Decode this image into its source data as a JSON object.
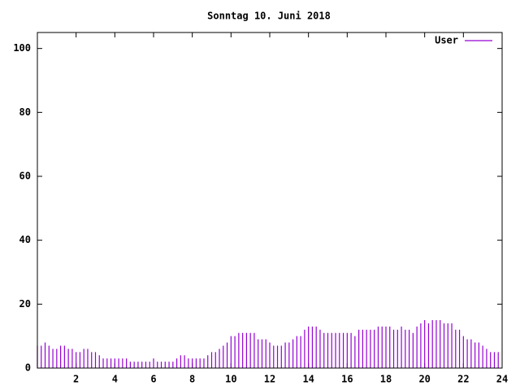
{
  "chart_data": {
    "type": "impulse",
    "title": "Sonntag 10. Juni 2018",
    "xlim": [
      0,
      24
    ],
    "xticks": [
      2,
      4,
      6,
      8,
      10,
      12,
      14,
      16,
      18,
      20,
      22,
      24
    ],
    "ylim": [
      0,
      105
    ],
    "yticks": [
      0,
      20,
      40,
      60,
      80,
      100
    ],
    "legend": "top-right",
    "x": [
      0,
      0.2,
      0.4,
      0.6,
      0.8,
      1,
      1.2,
      1.4,
      1.6,
      1.8,
      2,
      2.2,
      2.4,
      2.6,
      2.8,
      3,
      3.2,
      3.4,
      3.6,
      3.8,
      4,
      4.2,
      4.4,
      4.6,
      4.8,
      5,
      5.2,
      5.4,
      5.6,
      5.8,
      6,
      6.2,
      6.4,
      6.6,
      6.8,
      7,
      7.2,
      7.4,
      7.6,
      7.8,
      8,
      8.2,
      8.4,
      8.6,
      8.8,
      9,
      9.2,
      9.4,
      9.6,
      9.8,
      10,
      10.2,
      10.4,
      10.6,
      10.8,
      11,
      11.2,
      11.4,
      11.6,
      11.8,
      12,
      12.2,
      12.4,
      12.6,
      12.8,
      13,
      13.2,
      13.4,
      13.6,
      13.8,
      14,
      14.2,
      14.4,
      14.6,
      14.8,
      15,
      15.2,
      15.4,
      15.6,
      15.8,
      16,
      16.2,
      16.4,
      16.6,
      16.8,
      17,
      17.2,
      17.4,
      17.6,
      17.8,
      18,
      18.2,
      18.4,
      18.6,
      18.8,
      19,
      19.2,
      19.4,
      19.6,
      19.8,
      20,
      20.2,
      20.4,
      20.6,
      20.8,
      21,
      21.2,
      21.4,
      21.6,
      21.8,
      22,
      22.2,
      22.4,
      22.6,
      22.8,
      23,
      23.2,
      23.4,
      23.6,
      23.8
    ],
    "series": [
      {
        "name": "User",
        "color": "#9400d3",
        "values": [
          7,
          7,
          8,
          7,
          6,
          6,
          7,
          7,
          6,
          6,
          5,
          5,
          6,
          6,
          5,
          5,
          4,
          3,
          3,
          3,
          3,
          3,
          3,
          3,
          2,
          2,
          2,
          2,
          2,
          2,
          3,
          2,
          2,
          2,
          2,
          2,
          3,
          4,
          4,
          3,
          3,
          3,
          3,
          3,
          4,
          5,
          5,
          6,
          7,
          8,
          10,
          10,
          11,
          11,
          11,
          11,
          11,
          9,
          9,
          9,
          8,
          7,
          7,
          7,
          8,
          8,
          9,
          10,
          10,
          12,
          13,
          13,
          13,
          12,
          11,
          11,
          11,
          11,
          11,
          11,
          11,
          11,
          10,
          12,
          12,
          12,
          12,
          12,
          13,
          13,
          13,
          13,
          12,
          12,
          13,
          12,
          12,
          11,
          13,
          14,
          15,
          14,
          15,
          15,
          15,
          14,
          14,
          14,
          12,
          12,
          10,
          9,
          9,
          8,
          8,
          7,
          6,
          5,
          5,
          5
        ]
      }
    ]
  }
}
